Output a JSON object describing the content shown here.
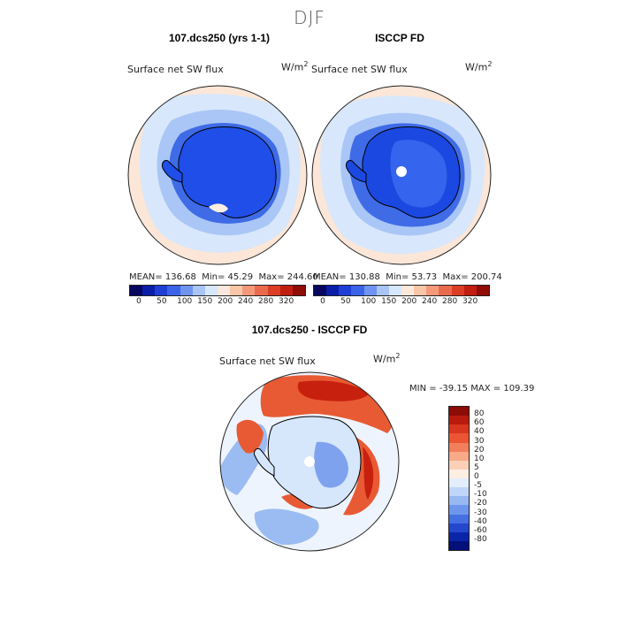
{
  "figure": {
    "season": "DJF"
  },
  "panels": {
    "model": {
      "title": "107.dcs250 (yrs 1-1)",
      "variable": "Surface net SW flux",
      "units_base": "W/m",
      "units_exp": "2",
      "mean_label": "MEAN=",
      "mean": "136.68",
      "min_label": "Min=",
      "min": "45.29",
      "max_label": "Max=",
      "max": "244.60"
    },
    "obs": {
      "title": "ISCCP FD",
      "variable": "Surface net SW flux",
      "units_base": "W/m",
      "units_exp": "2",
      "mean_label": "MEAN=",
      "mean": "130.88",
      "min_label": "Min=",
      "min": "53.73",
      "max_label": "Max=",
      "max": "200.74"
    },
    "diff": {
      "title": "107.dcs250 - ISCCP FD",
      "variable": "Surface net SW flux",
      "units_base": "W/m",
      "units_exp": "2",
      "min_label": "MIN =",
      "min": "-39.15",
      "max_label": "MAX =",
      "max": "109.39"
    }
  },
  "colorbar_abs": {
    "ticks": [
      "0",
      "50",
      "100",
      "150",
      "200",
      "240",
      "280",
      "320"
    ],
    "colors": [
      "#08065e",
      "#0a1ea8",
      "#1f3ed6",
      "#3b63e8",
      "#6e93f0",
      "#a8c5f6",
      "#d6e7fb",
      "#fbe8dc",
      "#f9c6a8",
      "#f3997a",
      "#ea6a4e",
      "#dc3d25",
      "#c01e10",
      "#900c06"
    ]
  },
  "colorbar_diff": {
    "labels": [
      "80",
      "60",
      "40",
      "30",
      "20",
      "10",
      "5",
      "0",
      "-5",
      "-10",
      "-20",
      "-30",
      "-40",
      "-60",
      "-80"
    ],
    "colors": [
      "#8c0c06",
      "#b81a0e",
      "#d8361e",
      "#ec5534",
      "#f27e5b",
      "#f7a988",
      "#fbd0b6",
      "#fdeee3",
      "#e3eefc",
      "#c0d6f8",
      "#97b8f2",
      "#6e96ec",
      "#4570e2",
      "#2447cc",
      "#0b25a8",
      "#04107a"
    ]
  },
  "map_colors": {
    "land_model": "#1f4ee8",
    "land_obs_core": "#3565ee",
    "land_obs_edge": "#1b48e0",
    "ocean_light": "#d8e7fb",
    "ocean_mid": "#a9c6f6",
    "ocean_warm": "#fbe6d8",
    "ring_blue": "#3f6be6",
    "diff_pos": "#e85a34",
    "diff_strong": "#c8200e",
    "diff_neg": "#9bbcf2",
    "diff_neg_strong": "#5a86e8",
    "diff_neutral": "#eef4fd"
  }
}
